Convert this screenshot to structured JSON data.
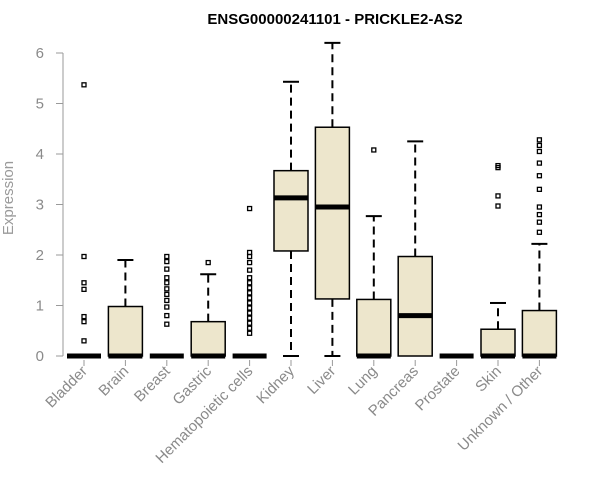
{
  "chart_data": {
    "type": "boxplot",
    "title": "ENSG00000241101 - PRICKLE2-AS2",
    "ylabel": "Expression",
    "xlabel": "",
    "ylim": [
      0,
      6.25
    ],
    "yticks": [
      0,
      1,
      2,
      3,
      4,
      5,
      6
    ],
    "grid": false,
    "colors": {
      "box_fill": "#ede6cc",
      "box_stroke": "#000000",
      "axis": "#9a9a9a"
    },
    "categories": [
      "Bladder",
      "Brain",
      "Breast",
      "Gastric",
      "Hematopoietic cells",
      "Kidney",
      "Liver",
      "Lung",
      "Pancreas",
      "Prostate",
      "Skin",
      "Unknown / Other"
    ],
    "boxes": [
      {
        "category": "Bladder",
        "min": 0,
        "q1": 0,
        "median": 0,
        "q3": 0,
        "max": 0,
        "outliers": [
          0.3,
          0.68,
          0.78,
          1.32,
          1.45,
          1.97,
          5.37
        ]
      },
      {
        "category": "Brain",
        "min": 0,
        "q1": 0,
        "median": 0,
        "q3": 0.98,
        "max": 1.9,
        "outliers": []
      },
      {
        "category": "Breast",
        "min": 0,
        "q1": 0,
        "median": 0,
        "q3": 0,
        "max": 0,
        "outliers": [
          0.63,
          0.8,
          0.97,
          1.1,
          1.22,
          1.33,
          1.45,
          1.55,
          1.72,
          1.87,
          1.97
        ]
      },
      {
        "category": "Gastric",
        "min": 0,
        "q1": 0,
        "median": 0,
        "q3": 0.68,
        "max": 1.62,
        "outliers": [
          1.85
        ]
      },
      {
        "category": "Hematopoietic cells",
        "min": 0,
        "q1": 0,
        "median": 0,
        "q3": 0,
        "max": 0,
        "outliers": [
          0.45,
          0.55,
          0.65,
          0.75,
          0.85,
          0.95,
          1.05,
          1.15,
          1.25,
          1.35,
          1.45,
          1.55,
          1.7,
          1.85,
          1.97,
          2.05,
          2.92
        ]
      },
      {
        "category": "Kidney",
        "min": 0,
        "q1": 2.08,
        "median": 3.13,
        "q3": 3.67,
        "max": 5.43,
        "outliers": []
      },
      {
        "category": "Liver",
        "min": 0,
        "q1": 1.13,
        "median": 2.95,
        "q3": 4.53,
        "max": 6.2,
        "outliers": []
      },
      {
        "category": "Lung",
        "min": 0,
        "q1": 0,
        "median": 0,
        "q3": 1.12,
        "max": 2.77,
        "outliers": [
          4.08
        ]
      },
      {
        "category": "Pancreas",
        "min": 0,
        "q1": 0,
        "median": 0.8,
        "q3": 1.97,
        "max": 4.25,
        "outliers": []
      },
      {
        "category": "Prostate",
        "min": 0,
        "q1": 0,
        "median": 0,
        "q3": 0,
        "max": 0,
        "outliers": []
      },
      {
        "category": "Skin",
        "min": 0,
        "q1": 0,
        "median": 0,
        "q3": 0.53,
        "max": 1.05,
        "outliers": [
          2.97,
          3.17,
          3.73,
          3.77
        ]
      },
      {
        "category": "Unknown / Other",
        "min": 0,
        "q1": 0,
        "median": 0,
        "q3": 0.9,
        "max": 2.22,
        "outliers": [
          2.45,
          2.65,
          2.8,
          2.95,
          3.3,
          3.57,
          3.82,
          4.05,
          4.17,
          4.28
        ]
      }
    ]
  }
}
